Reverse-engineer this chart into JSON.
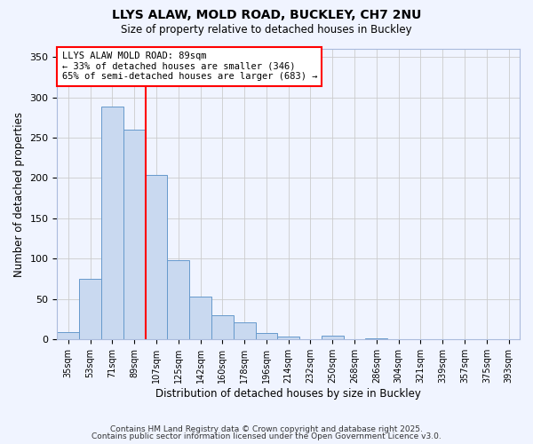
{
  "title": "LLYS ALAW, MOLD ROAD, BUCKLEY, CH7 2NU",
  "subtitle": "Size of property relative to detached houses in Buckley",
  "xlabel": "Distribution of detached houses by size in Buckley",
  "ylabel": "Number of detached properties",
  "bar_values": [
    9,
    75,
    288,
    260,
    204,
    98,
    53,
    30,
    21,
    8,
    4,
    0,
    5,
    0,
    1,
    0
  ],
  "bin_labels": [
    "35sqm",
    "53sqm",
    "71sqm",
    "89sqm",
    "107sqm",
    "125sqm",
    "142sqm",
    "160sqm",
    "178sqm",
    "196sqm",
    "214sqm",
    "232sqm",
    "250sqm",
    "268sqm",
    "286sqm",
    "304sqm",
    "321sqm",
    "339sqm",
    "357sqm",
    "375sqm",
    "393sqm"
  ],
  "bar_color": "#c9d9f0",
  "bar_edge_color": "#6699cc",
  "vline_x_index": 3,
  "vline_color": "red",
  "annotation_title": "LLYS ALAW MOLD ROAD: 89sqm",
  "annotation_line1": "← 33% of detached houses are smaller (346)",
  "annotation_line2": "65% of semi-detached houses are larger (683) →",
  "ylim": [
    0,
    360
  ],
  "yticks": [
    0,
    50,
    100,
    150,
    200,
    250,
    300,
    350
  ],
  "footer1": "Contains HM Land Registry data © Crown copyright and database right 2025.",
  "footer2": "Contains public sector information licensed under the Open Government Licence v3.0.",
  "bin_edges": [
    35,
    53,
    71,
    89,
    107,
    125,
    142,
    160,
    178,
    196,
    214,
    232,
    250,
    268,
    286,
    304,
    321,
    339,
    357,
    375,
    393
  ],
  "background_color": "#f0f4ff"
}
